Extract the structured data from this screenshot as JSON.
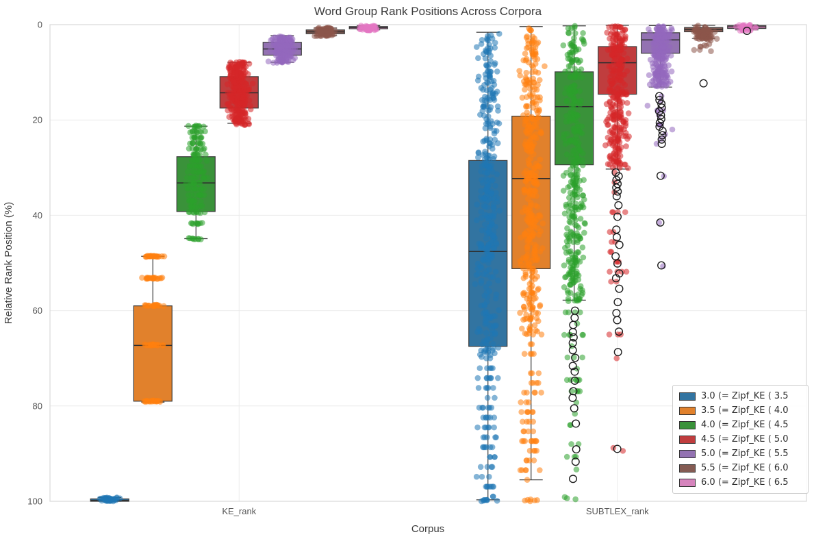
{
  "chart_data": {
    "type": "box",
    "title": "Word Group Rank Positions Across Corpora",
    "xlabel": "Corpus",
    "ylabel": "Relative Rank Position (%)",
    "ylim": [
      0,
      100
    ],
    "y_inverted": true,
    "y_ticks": [
      0,
      20,
      40,
      60,
      80,
      100
    ],
    "grid": true,
    "legend_position": "lower right",
    "categories": [
      "KE_rank",
      "SUBTLEX_rank"
    ],
    "series": [
      {
        "name": "3.0 ⟨= Zipf_KE ⟨ 3.5",
        "box_color": "#3274a1",
        "point_color": "#1f77b4",
        "boxes": [
          {
            "category": "KE_rank",
            "whislo": 99.2,
            "q1": 99.5,
            "med": 99.8,
            "q3": 100.0,
            "whishi": 100.0,
            "strip": [
              {
                "lo": 99.2,
                "hi": 100.0,
                "n": 45
              }
            ],
            "outliers": []
          },
          {
            "category": "SUBTLEX_rank",
            "whislo": 1.6,
            "q1": 28.5,
            "med": 47.6,
            "q3": 67.5,
            "whishi": 99.7,
            "strip": [
              {
                "lo": 1.8,
                "hi": 70.0,
                "n": 330
              },
              {
                "lo": 70.0,
                "hi": 99.0,
                "n": 70,
                "rows": 15
              },
              {
                "lo": 99.7,
                "hi": 100.0,
                "n": 8
              }
            ],
            "outliers": []
          }
        ]
      },
      {
        "name": "3.5 ⟨= Zipf_KE ⟨ 4.0",
        "box_color": "#e1812c",
        "point_color": "#ff7f0e",
        "boxes": [
          {
            "category": "KE_rank",
            "whislo": 48.6,
            "q1": 59.0,
            "med": 67.3,
            "q3": 79.0,
            "whishi": 79.2,
            "strip": [
              {
                "levels": [
                  48.6,
                  53.2,
                  58.9,
                  67.2,
                  79.0
                ],
                "n_per": 22
              }
            ],
            "outliers": []
          },
          {
            "category": "SUBTLEX_rank",
            "whislo": 0.4,
            "q1": 19.2,
            "med": 32.3,
            "q3": 51.2,
            "whishi": 95.5,
            "strip": [
              {
                "lo": 0.3,
                "hi": 65.0,
                "n": 360
              },
              {
                "lo": 65.0,
                "hi": 95.5,
                "n": 60,
                "rows": 16
              },
              {
                "lo": 99.6,
                "hi": 100.0,
                "n": 6
              }
            ],
            "outliers": []
          }
        ]
      },
      {
        "name": "4.0 ⟨= Zipf_KE ⟨ 4.5",
        "box_color": "#3a923a",
        "point_color": "#2ca02c",
        "boxes": [
          {
            "category": "KE_rank",
            "whislo": 21.3,
            "q1": 27.7,
            "med": 33.2,
            "q3": 39.2,
            "whishi": 44.9,
            "strip": [
              {
                "levels": [
                  21.3,
                  22.5,
                  23.7,
                  24.9,
                  26.1,
                  27.3,
                  28.5,
                  29.7,
                  30.9,
                  32.1,
                  33.3,
                  34.5,
                  35.7,
                  37.0,
                  38.2,
                  39.4,
                  41.7,
                  44.9
                ],
                "n_per": 9
              }
            ],
            "outliers": []
          },
          {
            "category": "SUBTLEX_rank",
            "whislo": 0.25,
            "q1": 9.9,
            "med": 17.2,
            "q3": 29.4,
            "whishi": 57.8,
            "strip": [
              {
                "lo": 0.2,
                "hi": 58.0,
                "n": 330
              },
              {
                "lo": 58.0,
                "hi": 84.0,
                "n": 30,
                "rows": 12
              },
              {
                "lo": 88.0,
                "hi": 96.0,
                "n": 6,
                "rows": 4
              },
              {
                "lo": 99.0,
                "hi": 99.6,
                "n": 3
              }
            ],
            "outliers": [
              60.0,
              61.5,
              63.0,
              64.5,
              65.6,
              66.8,
              68.3,
              69.9,
              71.6,
              72.8,
              74.7,
              76.9,
              78.3,
              80.5,
              83.7,
              89.1,
              91.7,
              95.3
            ]
          }
        ]
      },
      {
        "name": "4.5 ⟨= Zipf_KE ⟨ 5.0",
        "box_color": "#c03d3e",
        "point_color": "#d62728",
        "boxes": [
          {
            "category": "KE_rank",
            "whislo": 7.9,
            "q1": 10.9,
            "med": 14.3,
            "q3": 17.5,
            "whishi": 20.7,
            "strip": [
              {
                "lo": 7.7,
                "hi": 21.2,
                "n": 280
              }
            ],
            "outliers": []
          },
          {
            "category": "SUBTLEX_rank",
            "whislo": 0.15,
            "q1": 4.6,
            "med": 8.0,
            "q3": 14.6,
            "whishi": 30.3,
            "strip": [
              {
                "lo": 0.2,
                "hi": 30.3,
                "n": 300
              },
              {
                "lo": 31.0,
                "hi": 56.0,
                "n": 22,
                "rows": 13
              },
              {
                "lo": 60.0,
                "hi": 70.0,
                "n": 4,
                "rows": 3
              },
              {
                "lo": 88.5,
                "hi": 89.5,
                "n": 2
              }
            ],
            "outliers": [
              31.0,
              31.8,
              32.6,
              33.4,
              34.2,
              35.0,
              36.0,
              37.9,
              40.3,
              43.0,
              44.6,
              46.2,
              48.6,
              50.1,
              52.2,
              53.2,
              55.4,
              58.2,
              60.5,
              62.0,
              64.4,
              68.7,
              89.0
            ]
          }
        ]
      },
      {
        "name": "5.0 ⟨= Zipf_KE ⟨ 5.5",
        "box_color": "#9372b2",
        "point_color": "#9467bd",
        "boxes": [
          {
            "category": "KE_rank",
            "whislo": 2.3,
            "q1": 3.7,
            "med": 5.1,
            "q3": 6.4,
            "whishi": 7.9,
            "strip": [
              {
                "lo": 2.4,
                "hi": 8.0,
                "n": 160
              }
            ],
            "outliers": []
          },
          {
            "category": "SUBTLEX_rank",
            "whislo": 0.2,
            "q1": 1.7,
            "med": 3.2,
            "q3": 6.0,
            "whishi": 13.1,
            "strip": [
              {
                "lo": 0.3,
                "hi": 13.1,
                "n": 200
              },
              {
                "lo": 14.0,
                "hi": 25.0,
                "n": 14,
                "rows": 12
              },
              {
                "lo": 31.6,
                "hi": 31.9,
                "n": 1
              },
              {
                "lo": 41.3,
                "hi": 41.7,
                "n": 1
              },
              {
                "lo": 50.3,
                "hi": 50.7,
                "n": 1
              }
            ],
            "outliers": [
              15.0,
              15.8,
              16.6,
              17.4,
              18.2,
              19.0,
              19.8,
              20.6,
              21.4,
              22.3,
              23.2,
              24.1,
              25.0,
              31.7,
              41.5,
              50.5
            ]
          }
        ]
      },
      {
        "name": "5.5 ⟨= Zipf_KE ⟨ 6.0",
        "box_color": "#845b53",
        "point_color": "#8c564b",
        "boxes": [
          {
            "category": "KE_rank",
            "whislo": 0.7,
            "q1": 1.1,
            "med": 1.5,
            "q3": 1.9,
            "whishi": 2.3,
            "strip": [
              {
                "lo": 0.6,
                "hi": 2.4,
                "n": 80
              }
            ],
            "outliers": []
          },
          {
            "category": "SUBTLEX_rank",
            "whislo": 0.15,
            "q1": 0.6,
            "med": 1.0,
            "q3": 1.5,
            "whishi": 2.9,
            "strip": [
              {
                "lo": 0.2,
                "hi": 3.0,
                "n": 70
              },
              {
                "lo": 3.0,
                "hi": 5.7,
                "n": 10
              }
            ],
            "outliers": [
              12.3
            ]
          }
        ]
      },
      {
        "name": "6.0 ⟨= Zipf_KE ⟨ 6.5",
        "box_color": "#d684bd",
        "point_color": "#e377c2",
        "boxes": [
          {
            "category": "KE_rank",
            "whislo": 0.2,
            "q1": 0.4,
            "med": 0.6,
            "q3": 0.85,
            "whishi": 1.1,
            "strip": [
              {
                "lo": 0.2,
                "hi": 1.2,
                "n": 45
              }
            ],
            "outliers": []
          },
          {
            "category": "SUBTLEX_rank",
            "whislo": 0.05,
            "q1": 0.2,
            "med": 0.45,
            "q3": 0.8,
            "whishi": 1.1,
            "strip": [
              {
                "lo": 0.05,
                "hi": 1.3,
                "n": 30
              }
            ],
            "outliers": [
              1.3
            ]
          }
        ]
      }
    ]
  }
}
